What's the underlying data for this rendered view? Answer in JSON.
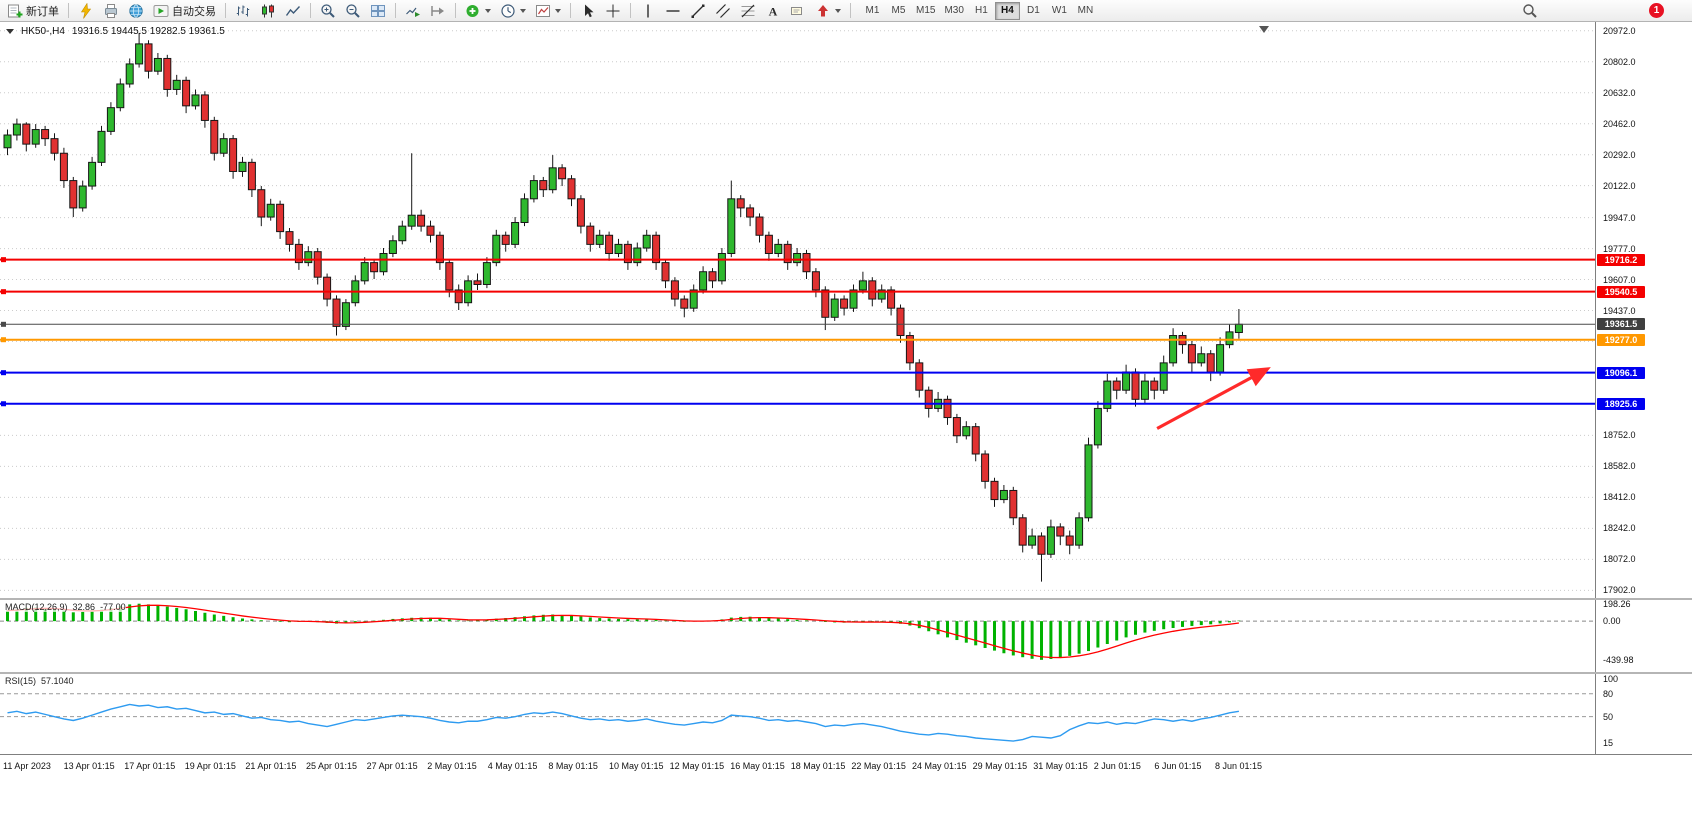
{
  "toolbar": {
    "new_order": "新订单",
    "auto_trading": "自动交易",
    "timeframes": [
      "M1",
      "M5",
      "M15",
      "M30",
      "H1",
      "H4",
      "D1",
      "W1",
      "MN"
    ],
    "active_timeframe": "H4",
    "notification_count": "1"
  },
  "chart_data": {
    "type": "candlestick",
    "title": "HK50-,H4",
    "ohlc_display": "19316.5 19445.5 19282.5 19361.5",
    "price_range": [
      17860,
      21020
    ],
    "candle_spacing": 9.4,
    "body_width": 7,
    "up_color": "#2eb82e",
    "down_color": "#e03131",
    "y_axis_labels": [
      "20972.0",
      "20802.0",
      "20632.0",
      "20462.0",
      "20292.0",
      "20122.0",
      "19947.0",
      "19777.0",
      "19607.0",
      "19437.0",
      "18752.0",
      "18582.0",
      "18412.0",
      "18242.0",
      "18072.0",
      "17902.0"
    ],
    "grid_extra": [
      19267.0,
      19097.0,
      18927.0
    ],
    "h_lines": [
      {
        "price": 19716.2,
        "label": "19716.2",
        "color": "#f40000",
        "width": 2
      },
      {
        "price": 19540.5,
        "label": "19540.5",
        "color": "#f40000",
        "width": 2
      },
      {
        "price": 19361.5,
        "label": "19361.5",
        "color": "#4a4a4a",
        "width": 1,
        "tag_bg": "#3f3f3f"
      },
      {
        "price": 19277.0,
        "label": "19277.0",
        "color": "#ff9800",
        "width": 2
      },
      {
        "price": 19096.1,
        "label": "19096.1",
        "color": "#0000f0",
        "width": 2
      },
      {
        "price": 18925.6,
        "label": "18925.6",
        "color": "#0000f0",
        "width": 2
      }
    ],
    "candles": [
      [
        20330,
        20430,
        20290,
        20400
      ],
      [
        20400,
        20490,
        20370,
        20460
      ],
      [
        20460,
        20470,
        20310,
        20350
      ],
      [
        20350,
        20460,
        20330,
        20430
      ],
      [
        20430,
        20450,
        20340,
        20380
      ],
      [
        20380,
        20410,
        20260,
        20300
      ],
      [
        20300,
        20330,
        20110,
        20150
      ],
      [
        20150,
        20170,
        19950,
        20000
      ],
      [
        20000,
        20150,
        19980,
        20120
      ],
      [
        20120,
        20280,
        20100,
        20250
      ],
      [
        20250,
        20450,
        20230,
        20420
      ],
      [
        20420,
        20580,
        20400,
        20550
      ],
      [
        20550,
        20710,
        20530,
        20680
      ],
      [
        20680,
        20820,
        20660,
        20790
      ],
      [
        20790,
        20960,
        20770,
        20900
      ],
      [
        20900,
        20920,
        20710,
        20750
      ],
      [
        20750,
        20850,
        20730,
        20820
      ],
      [
        20820,
        20840,
        20610,
        20650
      ],
      [
        20650,
        20730,
        20620,
        20700
      ],
      [
        20700,
        20720,
        20520,
        20560
      ],
      [
        20560,
        20650,
        20540,
        20620
      ],
      [
        20620,
        20640,
        20440,
        20480
      ],
      [
        20480,
        20500,
        20260,
        20300
      ],
      [
        20300,
        20410,
        20280,
        20380
      ],
      [
        20380,
        20400,
        20160,
        20200
      ],
      [
        20200,
        20280,
        20170,
        20250
      ],
      [
        20250,
        20270,
        20060,
        20100
      ],
      [
        20100,
        20120,
        19900,
        19950
      ],
      [
        19950,
        20050,
        19930,
        20020
      ],
      [
        20020,
        20040,
        19830,
        19870
      ],
      [
        19870,
        19890,
        19760,
        19800
      ],
      [
        19800,
        19830,
        19660,
        19700
      ],
      [
        19700,
        19790,
        19680,
        19760
      ],
      [
        19760,
        19780,
        19580,
        19620
      ],
      [
        19620,
        19640,
        19460,
        19500
      ],
      [
        19500,
        19520,
        19300,
        19350
      ],
      [
        19350,
        19500,
        19330,
        19480
      ],
      [
        19480,
        19630,
        19460,
        19600
      ],
      [
        19600,
        19730,
        19580,
        19700
      ],
      [
        19700,
        19720,
        19610,
        19650
      ],
      [
        19650,
        19780,
        19630,
        19750
      ],
      [
        19750,
        19850,
        19730,
        19820
      ],
      [
        19820,
        19930,
        19800,
        19900
      ],
      [
        19900,
        20300,
        19880,
        19960
      ],
      [
        19960,
        19990,
        19870,
        19900
      ],
      [
        19900,
        19930,
        19810,
        19850
      ],
      [
        19850,
        19870,
        19660,
        19700
      ],
      [
        19700,
        19720,
        19510,
        19550
      ],
      [
        19550,
        19580,
        19440,
        19480
      ],
      [
        19480,
        19630,
        19460,
        19600
      ],
      [
        19600,
        19640,
        19550,
        19580
      ],
      [
        19580,
        19730,
        19560,
        19700
      ],
      [
        19700,
        19880,
        19680,
        19850
      ],
      [
        19850,
        19870,
        19760,
        19800
      ],
      [
        19800,
        19950,
        19780,
        19920
      ],
      [
        19920,
        20080,
        19900,
        20050
      ],
      [
        20050,
        20180,
        20030,
        20150
      ],
      [
        20150,
        20170,
        20060,
        20100
      ],
      [
        20100,
        20290,
        20080,
        20220
      ],
      [
        20220,
        20240,
        20120,
        20160
      ],
      [
        20160,
        20180,
        20010,
        20050
      ],
      [
        20050,
        20070,
        19860,
        19900
      ],
      [
        19900,
        19920,
        19760,
        19800
      ],
      [
        19800,
        19880,
        19780,
        19850
      ],
      [
        19850,
        19870,
        19710,
        19750
      ],
      [
        19750,
        19830,
        19730,
        19800
      ],
      [
        19800,
        19820,
        19660,
        19700
      ],
      [
        19700,
        19810,
        19680,
        19780
      ],
      [
        19780,
        19880,
        19760,
        19850
      ],
      [
        19850,
        19870,
        19660,
        19700
      ],
      [
        19700,
        19720,
        19560,
        19600
      ],
      [
        19600,
        19620,
        19460,
        19500
      ],
      [
        19500,
        19520,
        19400,
        19450
      ],
      [
        19450,
        19580,
        19430,
        19550
      ],
      [
        19550,
        19680,
        19530,
        19650
      ],
      [
        19650,
        19670,
        19560,
        19600
      ],
      [
        19600,
        19780,
        19580,
        19750
      ],
      [
        19750,
        20150,
        19730,
        20050
      ],
      [
        20050,
        20070,
        19950,
        20000
      ],
      [
        20000,
        20020,
        19900,
        19950
      ],
      [
        19950,
        19970,
        19810,
        19850
      ],
      [
        19850,
        19870,
        19710,
        19750
      ],
      [
        19750,
        19830,
        19730,
        19800
      ],
      [
        19800,
        19820,
        19660,
        19700
      ],
      [
        19700,
        19780,
        19680,
        19750
      ],
      [
        19750,
        19770,
        19610,
        19650
      ],
      [
        19650,
        19670,
        19510,
        19550
      ],
      [
        19550,
        19570,
        19330,
        19400
      ],
      [
        19400,
        19530,
        19380,
        19500
      ],
      [
        19500,
        19520,
        19410,
        19450
      ],
      [
        19450,
        19580,
        19430,
        19550
      ],
      [
        19550,
        19650,
        19530,
        19600
      ],
      [
        19600,
        19620,
        19460,
        19500
      ],
      [
        19500,
        19580,
        19480,
        19550
      ],
      [
        19550,
        19570,
        19410,
        19450
      ],
      [
        19450,
        19470,
        19260,
        19300
      ],
      [
        19300,
        19320,
        19110,
        19150
      ],
      [
        19150,
        19170,
        18960,
        19000
      ],
      [
        19000,
        19020,
        18850,
        18900
      ],
      [
        18900,
        18990,
        18880,
        18950
      ],
      [
        18950,
        18970,
        18810,
        18850
      ],
      [
        18850,
        18870,
        18710,
        18750
      ],
      [
        18750,
        18830,
        18730,
        18800
      ],
      [
        18800,
        18820,
        18610,
        18650
      ],
      [
        18650,
        18670,
        18460,
        18500
      ],
      [
        18500,
        18520,
        18360,
        18400
      ],
      [
        18400,
        18480,
        18380,
        18450
      ],
      [
        18450,
        18470,
        18260,
        18300
      ],
      [
        18300,
        18320,
        18110,
        18150
      ],
      [
        18150,
        18240,
        18130,
        18200
      ],
      [
        18200,
        18220,
        17950,
        18100
      ],
      [
        18100,
        18290,
        18080,
        18250
      ],
      [
        18250,
        18270,
        18150,
        18200
      ],
      [
        18200,
        18230,
        18100,
        18150
      ],
      [
        18150,
        18330,
        18130,
        18300
      ],
      [
        18300,
        18740,
        18280,
        18700
      ],
      [
        18700,
        18940,
        18680,
        18900
      ],
      [
        18900,
        19090,
        18880,
        19050
      ],
      [
        19050,
        19070,
        18950,
        19000
      ],
      [
        19000,
        19140,
        18980,
        19100
      ],
      [
        19100,
        19120,
        18910,
        18950
      ],
      [
        18950,
        19090,
        18930,
        19050
      ],
      [
        19050,
        19070,
        18950,
        19000
      ],
      [
        19000,
        19190,
        18980,
        19150
      ],
      [
        19150,
        19340,
        19130,
        19300
      ],
      [
        19300,
        19320,
        19200,
        19250
      ],
      [
        19250,
        19270,
        19100,
        19150
      ],
      [
        19150,
        19240,
        19130,
        19200
      ],
      [
        19200,
        19220,
        19050,
        19100
      ],
      [
        19100,
        19290,
        19080,
        19250
      ],
      [
        19250,
        19360,
        19230,
        19320
      ],
      [
        19316.5,
        19445.5,
        19282.5,
        19361.5
      ]
    ],
    "arrow": {
      "i1": 122.3,
      "p1": 18790,
      "i2": 133.8,
      "p2": 19110,
      "color": "#ff2a2a"
    },
    "macd": {
      "name": "MACD(12,26,9)",
      "value_main": "32.86",
      "value_signal": "-77.00",
      "range": [
        -578,
        240
      ],
      "axis_labels": [
        {
          "v": 198.26,
          "t": "198.26"
        },
        {
          "v": 0,
          "t": "0.00"
        },
        {
          "v": -439.98,
          "t": "-439.98"
        }
      ],
      "hist_color": "#00b200",
      "signal_color": "#ff0000",
      "values": [
        120,
        135,
        150,
        155,
        150,
        140,
        120,
        100,
        105,
        115,
        130,
        150,
        170,
        190,
        198,
        190,
        180,
        165,
        150,
        135,
        115,
        95,
        75,
        60,
        45,
        30,
        20,
        10,
        0,
        -8,
        -12,
        -10,
        -5,
        -12,
        -20,
        -28,
        -25,
        -15,
        -5,
        5,
        15,
        25,
        32,
        38,
        40,
        38,
        30,
        18,
        8,
        5,
        10,
        18,
        28,
        35,
        45,
        55,
        65,
        72,
        75,
        70,
        62,
        52,
        42,
        35,
        30,
        25,
        22,
        20,
        18,
        12,
        5,
        -2,
        -8,
        -5,
        0,
        8,
        20,
        40,
        48,
        50,
        45,
        38,
        30,
        22,
        15,
        8,
        0,
        -10,
        -15,
        -18,
        -15,
        -12,
        -10,
        -12,
        -18,
        -30,
        -50,
        -80,
        -115,
        -150,
        -185,
        -215,
        -245,
        -275,
        -305,
        -335,
        -365,
        -390,
        -410,
        -428,
        -440,
        -430,
        -415,
        -395,
        -370,
        -340,
        -300,
        -260,
        -220,
        -185,
        -155,
        -130,
        -110,
        -92,
        -78,
        -66,
        -55,
        -45,
        -36,
        -26,
        -14,
        6
      ]
    },
    "rsi": {
      "name": "RSI(15)",
      "value": "57.1040",
      "range": [
        1,
        106
      ],
      "axis_labels": [
        {
          "v": 100,
          "t": "100"
        },
        {
          "v": 80,
          "t": "80"
        },
        {
          "v": 50,
          "t": "50"
        },
        {
          "v": 15,
          "t": "15"
        }
      ],
      "guides": [
        80,
        50
      ],
      "color": "#2e9bf0",
      "values": [
        55,
        57,
        54,
        56,
        53,
        50,
        47,
        45,
        48,
        52,
        56,
        60,
        63,
        66,
        64,
        65,
        62,
        63,
        60,
        61,
        58,
        55,
        56,
        53,
        54,
        51,
        48,
        49,
        46,
        45,
        43,
        44,
        41,
        39,
        37,
        40,
        43,
        46,
        45,
        47,
        49,
        51,
        52,
        51,
        50,
        48,
        45,
        43,
        42,
        44,
        44,
        46,
        49,
        48,
        50,
        53,
        55,
        54,
        56,
        54,
        51,
        48,
        46,
        47,
        45,
        46,
        44,
        45,
        47,
        44,
        42,
        40,
        39,
        41,
        43,
        42,
        45,
        52,
        51,
        50,
        48,
        45,
        46,
        44,
        45,
        43,
        41,
        37,
        39,
        38,
        40,
        41,
        39,
        37,
        34,
        31,
        29,
        27,
        26,
        28,
        27,
        25,
        24,
        22,
        21,
        20,
        19,
        18,
        20,
        24,
        23,
        22,
        25,
        33,
        38,
        42,
        41,
        43,
        40,
        42,
        41,
        44,
        47,
        46,
        44,
        46,
        44,
        47,
        49,
        52,
        55,
        57
      ]
    },
    "time_labels": [
      "11 Apr 2023",
      "13 Apr 01:15",
      "17 Apr 01:15",
      "19 Apr 01:15",
      "21 Apr 01:15",
      "25 Apr 01:15",
      "27 Apr 01:15",
      "2 May 01:15",
      "4 May 01:15",
      "8 May 01:15",
      "10 May 01:15",
      "12 May 01:15",
      "16 May 01:15",
      "18 May 01:15",
      "22 May 01:15",
      "24 May 01:15",
      "29 May 01:15",
      "31 May 01:15",
      "2 Jun 01:15",
      "6 Jun 01:15",
      "8 Jun 01:15"
    ],
    "time_label_start": 3,
    "time_label_spacing": 60.6
  }
}
